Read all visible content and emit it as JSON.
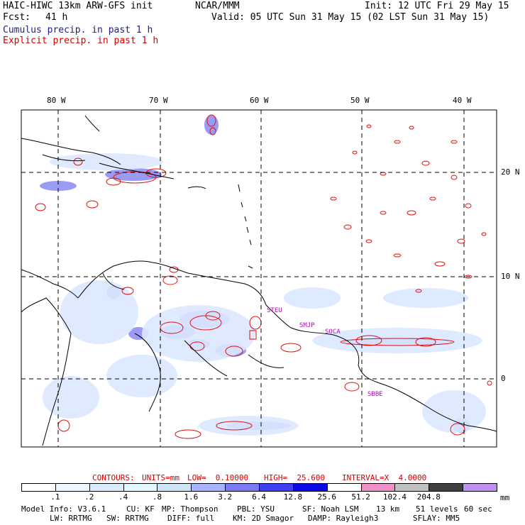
{
  "header": {
    "title": "HAIC-HIWC 13km ARW-GFS init",
    "org": "NCAR/MMM",
    "init": "Init: 12 UTC Fri 29 May 15",
    "fcst_label": "Fcst:",
    "fcst_value": "41 h",
    "valid": "Valid: 05 UTC Sun 31 May 15 (02 LST Sun 31 May 15)",
    "cumulus": "Cumulus precip. in past 1 h",
    "explicit": "Explicit precip. in past 1 h"
  },
  "map": {
    "lon_labels": [
      "80 W",
      "70 W",
      "60 W",
      "50 W",
      "40 W"
    ],
    "lat_labels": [
      "20 N",
      "10 N",
      "0"
    ],
    "stations": [
      "STEU",
      "SMJP",
      "SOCA",
      "SBBE"
    ]
  },
  "contours": {
    "label": "CONTOURS:",
    "units": "UNITS=mm",
    "low": "LOW=  0.10000",
    "high": "HIGH=  25.600",
    "interval": "INTERVAL=X  4.0000"
  },
  "colorbar": {
    "units": "mm",
    "ticks": [
      ".1",
      ".2",
      ".4",
      ".8",
      "1.6",
      "3.2",
      "6.4",
      "12.8",
      "25.6",
      "51.2",
      "102.4",
      "204.8"
    ],
    "colors": [
      "#ffffff",
      "#eef6ff",
      "#dcecff",
      "#e4f8ff",
      "#cde4f4",
      "#a8b4ff",
      "#7a7af4",
      "#4040f0",
      "#0a0ae8",
      "#ffffff",
      "#f090c8",
      "#c0c0c0",
      "#404040",
      "#c090f0"
    ]
  },
  "footer": {
    "line1": [
      "Model Info: V3.6.1",
      "CU: KF",
      "MP: Thompson",
      "PBL: YSU",
      "SF: Noah LSM",
      "13 km",
      "51 levels",
      "60 sec"
    ],
    "line2": [
      "LW: RRTMG",
      "SW: RRTMG",
      "DIFF: full",
      "KM: 2D Smagor",
      "DAMP: Rayleigh3",
      "SFLAY: MM5"
    ]
  }
}
